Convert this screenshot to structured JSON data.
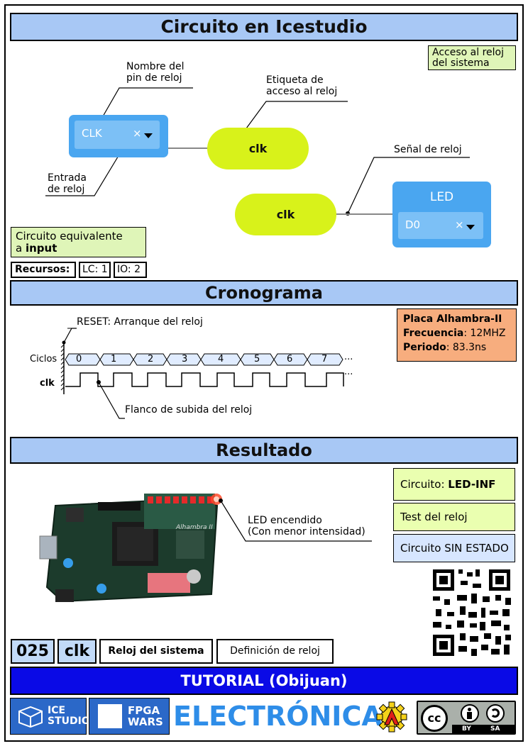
{
  "sections": {
    "circuit_title": "Circuito en Icestudio",
    "timing_title": "Cronograma",
    "result_title": "Resultado"
  },
  "circuit": {
    "access_note": [
      "Acceso al reloj",
      "del sistema"
    ],
    "pin_label": [
      "Nombre del",
      "pin de reloj"
    ],
    "tag_label": [
      "Etiqueta de",
      "acceso al reloj"
    ],
    "input_label": [
      "Entrada",
      "de reloj"
    ],
    "signal_label": "Señal de reloj",
    "input_block": {
      "pin": "CLK",
      "x": "×"
    },
    "tag_out": "clk",
    "tag_in": "clk",
    "output_block": {
      "name": "LED",
      "pin": "D0",
      "x": "×"
    },
    "equiv_note": {
      "line1": "Circuito equivalente",
      "prefix": "a ",
      "bold": "input"
    },
    "resources": {
      "label": "Recursos:",
      "lc": "LC: 1",
      "io": "IO: 2"
    }
  },
  "timing": {
    "reset_label": "RESET: Arranque del reloj",
    "cycles_label": "Ciclos",
    "clk_label": "clk",
    "cycles": [
      "0",
      "1",
      "2",
      "3",
      "4",
      "5",
      "6",
      "7"
    ],
    "ellipsis": "...",
    "edge_label": "Flanco de subida del reloj",
    "board": {
      "name": "Placa Alhambra-II",
      "freq_label": "Frecuencia",
      "freq_value": ": 12MHZ",
      "period_label": "Periodo",
      "period_value": ": 83.3ns"
    }
  },
  "result": {
    "led_label": [
      "LED encendido",
      "(Con menor intensidad)"
    ],
    "circuit_prefix": "Circuito: ",
    "circuit_name": "LED-INF",
    "test": "Test del reloj",
    "state": "Circuito SIN ESTADO",
    "board_text": "Alhambra II"
  },
  "footer": {
    "number": "025",
    "name": "clk",
    "title": "Reloj del sistema",
    "desc": "Definición de reloj",
    "tutorial": "TUTORIAL (Obijuan)",
    "ice_logo": [
      "ICE",
      "STUDIO"
    ],
    "fpga_logo": [
      "FPGA",
      "WARS"
    ],
    "electronica": "ELECTRÓNICA",
    "cc": "cc",
    "by": "BY",
    "sa": "SA"
  },
  "colors": {
    "header": "#a8c8f5",
    "note_green": "#dff5b8",
    "block_blue": "#4aa6f0",
    "tag_yellow": "#d8f21a",
    "board_orange": "#f7ad7e",
    "tutorial_blue": "#0a0ae6",
    "footer_blue": "#2b68c8",
    "electronica_blue": "#2e8de8"
  },
  "icons": [
    "dropdown-icon",
    "qr-code-icon",
    "robot-gear-icon",
    "cc-by-sa-icon",
    "ice-studio-logo",
    "fpga-wars-logo"
  ]
}
